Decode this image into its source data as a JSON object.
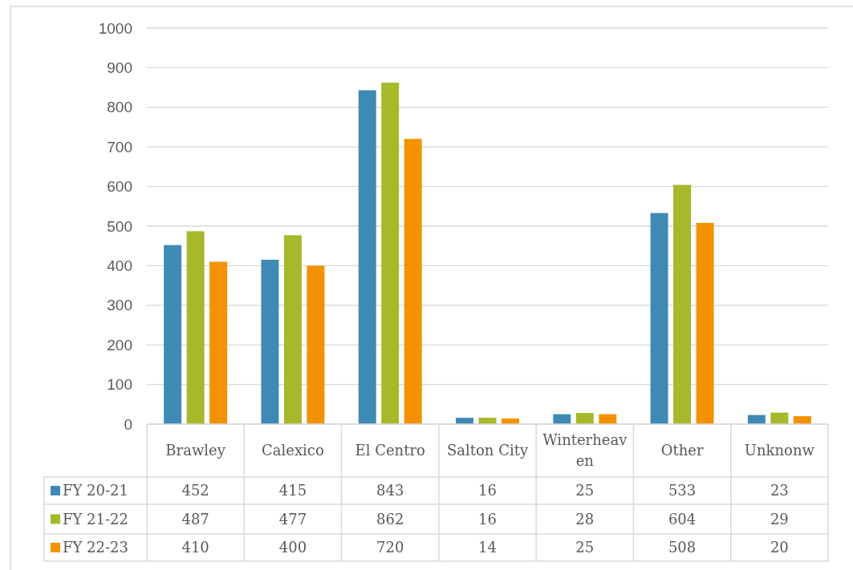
{
  "chart_data": {
    "type": "bar",
    "categories": [
      "Brawley",
      "Calexico",
      "El Centro",
      "Salton City",
      "Winterheaven",
      "Other",
      "Unknonw"
    ],
    "series": [
      {
        "name": "FY 20-21",
        "color": "#3f8ab5",
        "values": [
          452,
          415,
          843,
          16,
          25,
          533,
          23
        ]
      },
      {
        "name": "FY 21-22",
        "color": "#a5b92a",
        "values": [
          487,
          477,
          862,
          16,
          28,
          604,
          29
        ]
      },
      {
        "name": "FY 22-23",
        "color": "#f39200",
        "values": [
          410,
          400,
          720,
          14,
          25,
          508,
          20
        ]
      }
    ],
    "ylim": [
      0,
      1000
    ],
    "yticks": [
      0,
      100,
      200,
      300,
      400,
      500,
      600,
      700,
      800,
      900,
      1000
    ],
    "grid": "y",
    "legend": "bottom",
    "data_labels": true
  }
}
